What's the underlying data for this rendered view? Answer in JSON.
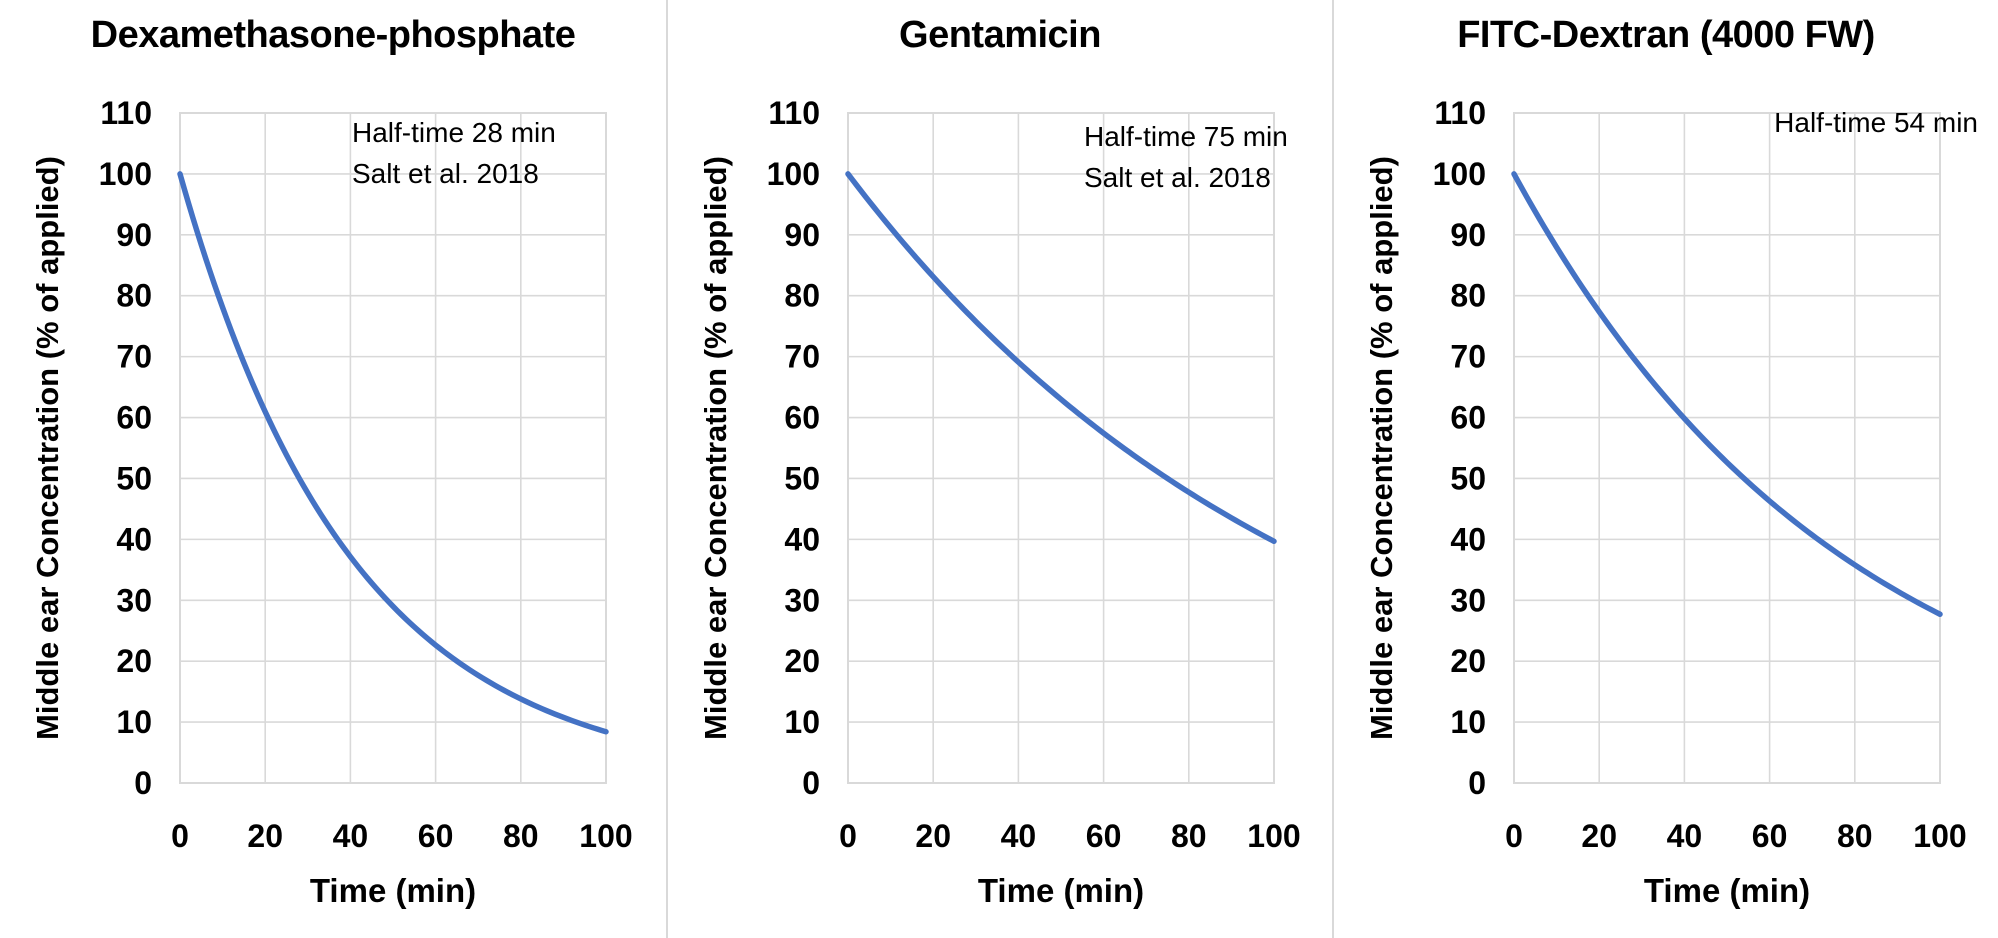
{
  "figure": {
    "background_color": "#FFFFFF",
    "divider_color": "#D9D9D9",
    "panel_count": 3
  },
  "chart_data": [
    {
      "type": "line",
      "title": "Dexamethasone-phosphate",
      "annotations": [
        "Half-time 28 min",
        "Salt et al. 2018"
      ],
      "half_time_min": 28,
      "xlabel": "Time (min)",
      "ylabel": "Middle ear Concentration (% of applied)",
      "x_range": [
        0,
        100
      ],
      "y_range": [
        0,
        110
      ],
      "x_ticks": [
        0,
        20,
        40,
        60,
        80,
        100
      ],
      "y_ticks": [
        0,
        10,
        20,
        30,
        40,
        50,
        60,
        70,
        80,
        90,
        100,
        110
      ],
      "grid": true,
      "legend": "none",
      "line_color": "#4472C4",
      "grid_color": "#D9D9D9",
      "x": [
        0,
        10,
        20,
        30,
        40,
        50,
        60,
        70,
        80,
        90,
        100
      ],
      "y": [
        100,
        78.1,
        61.0,
        47.6,
        37.2,
        29.0,
        22.6,
        17.7,
        13.8,
        10.8,
        8.4
      ]
    },
    {
      "type": "line",
      "title": "Gentamicin",
      "annotations": [
        "Half-time 75 min",
        "Salt et al. 2018"
      ],
      "half_time_min": 75,
      "xlabel": "Time (min)",
      "ylabel": "Middle ear Concentration (% of applied)",
      "x_range": [
        0,
        100
      ],
      "y_range": [
        0,
        110
      ],
      "x_ticks": [
        0,
        20,
        40,
        60,
        80,
        100
      ],
      "y_ticks": [
        0,
        10,
        20,
        30,
        40,
        50,
        60,
        70,
        80,
        90,
        100,
        110
      ],
      "grid": true,
      "legend": "none",
      "line_color": "#4472C4",
      "grid_color": "#D9D9D9",
      "x": [
        0,
        10,
        20,
        30,
        40,
        50,
        60,
        70,
        80,
        90,
        100
      ],
      "y": [
        100,
        91.2,
        83.1,
        75.8,
        69.1,
        63.0,
        57.4,
        52.4,
        47.7,
        43.5,
        39.7
      ]
    },
    {
      "type": "line",
      "title": "FITC-Dextran (4000 FW)",
      "annotations": [
        "Half-time 54 min"
      ],
      "half_time_min": 54,
      "xlabel": "Time (min)",
      "ylabel": "Middle ear Concentration (% of applied)",
      "x_range": [
        0,
        100
      ],
      "y_range": [
        0,
        110
      ],
      "x_ticks": [
        0,
        20,
        40,
        60,
        80,
        100
      ],
      "y_ticks": [
        0,
        10,
        20,
        30,
        40,
        50,
        60,
        70,
        80,
        90,
        100,
        110
      ],
      "grid": true,
      "legend": "none",
      "line_color": "#4472C4",
      "grid_color": "#D9D9D9",
      "x": [
        0,
        10,
        20,
        30,
        40,
        50,
        60,
        70,
        80,
        90,
        100
      ],
      "y": [
        100,
        88.0,
        77.4,
        68.0,
        59.8,
        52.6,
        46.3,
        40.7,
        35.8,
        31.5,
        27.7
      ]
    }
  ]
}
